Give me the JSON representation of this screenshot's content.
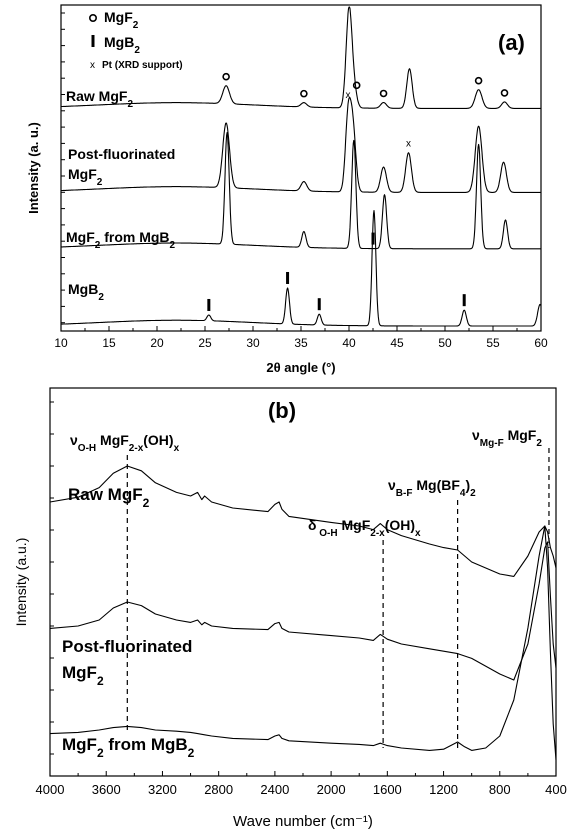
{
  "chart_data": [
    {
      "type": "line",
      "panel_label": "(a)",
      "xlabel": "2θ angle (°)",
      "ylabel": "Intensity (a. u.)",
      "xlim": [
        10,
        60
      ],
      "x_ticks": [
        10,
        15,
        20,
        25,
        30,
        35,
        40,
        45,
        50,
        55,
        60
      ],
      "legend": [
        {
          "symbol": "o",
          "base": "MgF",
          "sub": "2",
          "tail": ""
        },
        {
          "symbol": "I",
          "base": "MgB",
          "sub": "2",
          "tail": ""
        },
        {
          "symbol": "x",
          "base": "Pt (XRD support)",
          "sub": "",
          "tail": ""
        }
      ],
      "series": [
        {
          "name": "Raw MgF2",
          "label": {
            "base": "Raw MgF",
            "sub": "2"
          },
          "base": 0.05,
          "peaks": [
            [
              27.2,
              0.25,
              0.35
            ],
            [
              35.3,
              0.06,
              0.3
            ],
            [
              40.0,
              1.35,
              0.3
            ],
            [
              40.5,
              0.25,
              0.3
            ],
            [
              43.6,
              0.08,
              0.3
            ],
            [
              46.3,
              0.55,
              0.28
            ],
            [
              53.5,
              0.26,
              0.35
            ],
            [
              56.2,
              0.09,
              0.3
            ]
          ],
          "markers": [
            {
              "x": 27.2,
              "s": "o"
            },
            {
              "x": 35.3,
              "s": "o"
            },
            {
              "x": 40.8,
              "s": "o"
            },
            {
              "x": 43.6,
              "s": "o"
            },
            {
              "x": 53.5,
              "s": "o"
            },
            {
              "x": 56.2,
              "s": "o"
            }
          ]
        },
        {
          "name": "Post-fluorinated MgF2",
          "label": {
            "base": "Post-fluorinated",
            "line2": "MgF",
            "sub": "2"
          },
          "base": 0.05,
          "peaks": [
            [
              27.2,
              0.9,
              0.35
            ],
            [
              35.3,
              0.13,
              0.3
            ],
            [
              39.9,
              1.0,
              0.28
            ],
            [
              40.4,
              0.88,
              0.3
            ],
            [
              43.6,
              0.35,
              0.3
            ],
            [
              46.2,
              0.55,
              0.3
            ],
            [
              53.5,
              0.92,
              0.35
            ],
            [
              56.1,
              0.42,
              0.3
            ]
          ],
          "markers": [
            {
              "x": 39.9,
              "s": "x"
            },
            {
              "x": 46.2,
              "s": "x"
            }
          ]
        },
        {
          "name": "MgF2 from MgB2",
          "label": {
            "base": "MgF",
            "sub": "2",
            "tail": " from MgB",
            "sub2": "2"
          },
          "base": 0.1,
          "peaks": [
            [
              27.3,
              1.55,
              0.22
            ],
            [
              35.3,
              0.22,
              0.22
            ],
            [
              40.5,
              1.5,
              0.22
            ],
            [
              43.7,
              0.75,
              0.22
            ],
            [
              53.5,
              1.45,
              0.22
            ],
            [
              56.3,
              0.4,
              0.22
            ]
          ],
          "markers": [
            {
              "x": 42.5,
              "s": "I"
            }
          ]
        },
        {
          "name": "MgB2",
          "label": {
            "base": "MgB",
            "sub": "2"
          },
          "base": 0.0,
          "peaks": [
            [
              25.4,
              0.08,
              0.2
            ],
            [
              33.6,
              0.5,
              0.2
            ],
            [
              36.9,
              0.15,
              0.2
            ],
            [
              42.6,
              1.6,
              0.2
            ],
            [
              52.0,
              0.22,
              0.22
            ],
            [
              59.9,
              0.3,
              0.25
            ]
          ],
          "markers": [
            {
              "x": 25.4,
              "s": "I"
            },
            {
              "x": 33.6,
              "s": "I"
            },
            {
              "x": 36.9,
              "s": "I"
            },
            {
              "x": 52.0,
              "s": "I"
            }
          ]
        }
      ]
    },
    {
      "type": "line",
      "panel_label": "(b)",
      "xlabel": "Wave number (cm⁻¹)",
      "ylabel": "Intensity (a.u.)",
      "xlim": [
        4000,
        400
      ],
      "x_ticks": [
        4000,
        3600,
        3200,
        2800,
        2400,
        2000,
        1600,
        1200,
        800,
        400
      ],
      "series": [
        {
          "name": "Raw MgF2",
          "label": {
            "base": "Raw MgF",
            "sub": "2"
          },
          "x": [
            4000,
            3800,
            3650,
            3550,
            3450,
            3350,
            3250,
            3100,
            3000,
            2950,
            2920,
            2900,
            2850,
            2700,
            2450,
            2400,
            2370,
            2350,
            2300,
            2000,
            1800,
            1700,
            1650,
            1600,
            1500,
            1300,
            1200,
            1100,
            1000,
            800,
            700,
            600,
            520,
            480,
            460,
            440,
            420,
            400
          ],
          "y": [
            0.5,
            0.54,
            0.62,
            0.74,
            0.8,
            0.76,
            0.66,
            0.58,
            0.55,
            0.58,
            0.52,
            0.55,
            0.5,
            0.45,
            0.42,
            0.48,
            0.5,
            0.44,
            0.38,
            0.33,
            0.3,
            0.27,
            0.32,
            0.27,
            0.22,
            0.15,
            0.12,
            0.1,
            0.0,
            -0.1,
            -0.12,
            0.05,
            0.25,
            0.3,
            0.25,
            0.12,
            0.05,
            -0.05
          ]
        },
        {
          "name": "Post-fluorinated MgF2",
          "label": {
            "base": "Post-fluorinated",
            "line2": "MgF",
            "sub": "2"
          },
          "x": [
            4000,
            3800,
            3650,
            3550,
            3450,
            3350,
            3250,
            3100,
            3000,
            2950,
            2920,
            2900,
            2850,
            2700,
            2450,
            2400,
            2370,
            2350,
            2300,
            2000,
            1800,
            1700,
            1650,
            1600,
            1500,
            1300,
            1200,
            1100,
            1000,
            800,
            700,
            600,
            520,
            480,
            460,
            440,
            420,
            400
          ],
          "y": [
            0.33,
            0.35,
            0.4,
            0.5,
            0.55,
            0.52,
            0.45,
            0.4,
            0.38,
            0.4,
            0.36,
            0.38,
            0.35,
            0.33,
            0.32,
            0.37,
            0.38,
            0.33,
            0.3,
            0.27,
            0.25,
            0.23,
            0.28,
            0.24,
            0.2,
            0.16,
            0.14,
            0.12,
            0.08,
            -0.05,
            -0.1,
            0.2,
            0.7,
            1.0,
            1.05,
            0.6,
            0.2,
            0.0
          ]
        },
        {
          "name": "MgF2 from MgB2",
          "label": {
            "base": "MgF",
            "sub": "2",
            "tail": " from MgB",
            "sub2": "2"
          },
          "x": [
            4000,
            3800,
            3650,
            3550,
            3450,
            3350,
            3250,
            3100,
            3000,
            2950,
            2900,
            2850,
            2700,
            2450,
            2400,
            2370,
            2350,
            2300,
            2000,
            1800,
            1700,
            1650,
            1600,
            1500,
            1300,
            1200,
            1150,
            1100,
            1050,
            1000,
            900,
            800,
            700,
            600,
            520,
            480,
            460,
            440,
            420,
            400
          ],
          "y": [
            0.12,
            0.13,
            0.15,
            0.17,
            0.18,
            0.17,
            0.15,
            0.14,
            0.13,
            0.12,
            0.11,
            0.1,
            0.08,
            0.07,
            0.1,
            0.11,
            0.08,
            0.06,
            0.04,
            0.03,
            0.02,
            0.04,
            0.02,
            0.0,
            -0.02,
            -0.01,
            0.02,
            0.05,
            0.01,
            -0.02,
            0.0,
            0.1,
            0.4,
            1.0,
            1.6,
            1.85,
            1.5,
            0.8,
            0.2,
            -0.1
          ]
        }
      ],
      "annotations": [
        {
          "x": 3450,
          "sym": "ν",
          "sym_sub": "O-H",
          "base": " MgF",
          "sub": "2-x",
          "tail": "(OH)",
          "sub2": "x"
        },
        {
          "x": 1630,
          "sym": "δ",
          "sym_sub": " O-H",
          "base": " MgF",
          "sub": "2-x",
          "tail": "(OH)",
          "sub2": "x"
        },
        {
          "x": 1100,
          "sym": "ν",
          "sym_sub": "B-F",
          "base": " Mg(BF",
          "sub": "4",
          "tail": ")",
          "sub2": "2"
        },
        {
          "x": 450,
          "sym": "ν",
          "sym_sub": "Mg-F",
          "base": " MgF",
          "sub": "2",
          "tail": "",
          "sub2": ""
        }
      ]
    }
  ]
}
